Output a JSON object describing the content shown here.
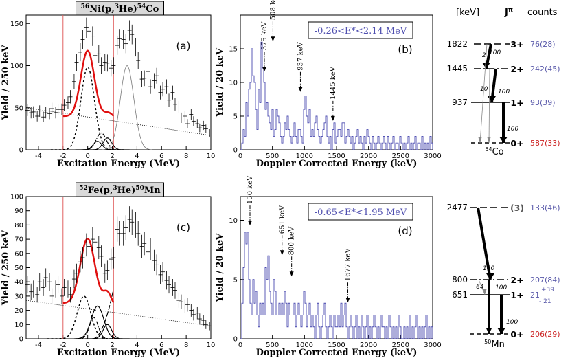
{
  "chart_data": [
    {
      "id": "a",
      "type": "scatter",
      "panel_label": "(a)",
      "header": {
        "pre": "56",
        "mid1": "Ni(p,",
        "sup": "3",
        "mid2": "He)",
        "sup2": "54",
        "post": "Co"
      },
      "xlabel": "Excitation Energy (MeV)",
      "ylabel": "Yield / 250 keV",
      "xlim": [
        -5,
        10
      ],
      "ylim": [
        0,
        160
      ],
      "xticks": [
        "-4",
        "-2",
        "0",
        "2",
        "4",
        "6",
        "8",
        "10"
      ],
      "yticks": [
        "0",
        "50",
        "100",
        "150"
      ],
      "vlines": [
        -2,
        2.1
      ],
      "data_points": [
        [
          -4.9,
          47
        ],
        [
          -4.6,
          44
        ],
        [
          -4.4,
          45
        ],
        [
          -4.1,
          40
        ],
        [
          -3.9,
          46
        ],
        [
          -3.6,
          39
        ],
        [
          -3.4,
          44
        ],
        [
          -3.1,
          43
        ],
        [
          -2.9,
          49
        ],
        [
          -2.6,
          44
        ],
        [
          -2.4,
          48
        ],
        [
          -2.1,
          48
        ],
        [
          -1.9,
          53
        ],
        [
          -1.6,
          56
        ],
        [
          -1.4,
          63
        ],
        [
          -1.1,
          81
        ],
        [
          -0.9,
          104
        ],
        [
          -0.6,
          116
        ],
        [
          -0.4,
          131
        ],
        [
          -0.1,
          145
        ],
        [
          0.1,
          141
        ],
        [
          0.4,
          135
        ],
        [
          0.6,
          112
        ],
        [
          0.9,
          114
        ],
        [
          1.1,
          100
        ],
        [
          1.4,
          104
        ],
        [
          1.6,
          103
        ],
        [
          1.9,
          97
        ],
        [
          2.1,
          100
        ],
        [
          2.4,
          124
        ],
        [
          2.6,
          132
        ],
        [
          2.9,
          131
        ],
        [
          3.1,
          126
        ],
        [
          3.4,
          142
        ],
        [
          3.6,
          137
        ],
        [
          3.9,
          122
        ],
        [
          4.1,
          106
        ],
        [
          4.4,
          84
        ],
        [
          4.6,
          85
        ],
        [
          4.9,
          93
        ],
        [
          5.1,
          75
        ],
        [
          5.4,
          82
        ],
        [
          5.6,
          88
        ],
        [
          5.9,
          68
        ],
        [
          6.1,
          72
        ],
        [
          6.4,
          75
        ],
        [
          6.6,
          59
        ],
        [
          6.9,
          68
        ],
        [
          7.1,
          54
        ],
        [
          7.4,
          51
        ],
        [
          7.6,
          38
        ],
        [
          7.9,
          40
        ],
        [
          8.1,
          31
        ],
        [
          8.4,
          42
        ],
        [
          8.6,
          34
        ],
        [
          8.9,
          31
        ],
        [
          9.1,
          26
        ],
        [
          9.4,
          29
        ],
        [
          9.6,
          25
        ],
        [
          9.9,
          20
        ]
      ],
      "fit_total": {
        "x_range": [
          -2,
          2.1
        ],
        "peaks": [
          [
            0,
            80,
            0.55
          ],
          [
            1.7,
            8,
            0.4
          ]
        ],
        "bg": 40
      },
      "gaussian_main": {
        "center": 0,
        "amp": 98,
        "sigma": 0.55
      },
      "gaussian_small": [
        {
          "center": 0.8,
          "amp": 10,
          "sigma": 0.35
        },
        {
          "center": 1.6,
          "amp": 14,
          "sigma": 0.35
        }
      ],
      "dashdot_peak": {
        "center": 1.1,
        "amp": 20,
        "sigma": 0.4
      },
      "thin_peak": {
        "center": 3.2,
        "amp": 100,
        "sigma": 0.55
      },
      "background": {
        "y_start": 50,
        "y_end": 17
      }
    },
    {
      "id": "b",
      "type": "bar",
      "panel_label": "(b)",
      "legend_box": "-0.26<E*<2.14 MeV",
      "xlabel": "Doppler Corrected Energy (keV)",
      "ylabel": "Yield / 20 keV",
      "xlim": [
        0,
        3000
      ],
      "ylim": [
        0,
        20
      ],
      "xticks": [
        "0",
        "500",
        "1000",
        "1500",
        "2000",
        "2500",
        "3000"
      ],
      "yticks": [
        "0",
        "5",
        "10",
        "15"
      ],
      "annotations": [
        {
          "label": "375 keV",
          "x": 375,
          "y": 11.5
        },
        {
          "label": "508 keV",
          "x": 508,
          "y": 16
        },
        {
          "label": "937 keV",
          "x": 937,
          "y": 8.5
        },
        {
          "label": "1445 keV",
          "x": 1445,
          "y": 4.2
        }
      ],
      "histogram": [
        0,
        1,
        3,
        2,
        7,
        5,
        9,
        10,
        15,
        11,
        10,
        6,
        3,
        9,
        7,
        16,
        12,
        10,
        6,
        7,
        5,
        4,
        3,
        6,
        2,
        3,
        6,
        5,
        4,
        2,
        1,
        2,
        4,
        3,
        5,
        3,
        2,
        1,
        2,
        4,
        2,
        1,
        3,
        3,
        2,
        1,
        6,
        8,
        5,
        4,
        6,
        2,
        3,
        2,
        4,
        5,
        3,
        2,
        1,
        2,
        3,
        4,
        5,
        2,
        1,
        2,
        0,
        3,
        4,
        1,
        2,
        3,
        3,
        2,
        4,
        4,
        1,
        2,
        3,
        2,
        1,
        2,
        0,
        1,
        2,
        3,
        1,
        2,
        1,
        0,
        2,
        1,
        3,
        2,
        1,
        0,
        2,
        1,
        0,
        1,
        2,
        1,
        0,
        1,
        2,
        1,
        0,
        2,
        1,
        0,
        1,
        2,
        0,
        1,
        1,
        0,
        2,
        1,
        0,
        1,
        0,
        1,
        2,
        0,
        1,
        0,
        1,
        2,
        0,
        1,
        1,
        0,
        2,
        0,
        1,
        0,
        1,
        0,
        2,
        1
      ]
    },
    {
      "id": "c",
      "type": "scatter",
      "panel_label": "(c)",
      "header": {
        "pre": "52",
        "mid1": "Fe(p,",
        "sup": "3",
        "mid2": "He)",
        "sup2": "50",
        "post": "Mn"
      },
      "xlabel": "Excitation Energy (MeV)",
      "ylabel": "Yield / 250 keV",
      "xlim": [
        -5,
        10
      ],
      "ylim": [
        0,
        100
      ],
      "xticks": [
        "-4",
        "-2",
        "0",
        "2",
        "4",
        "6",
        "8",
        "10"
      ],
      "yticks": [
        "0",
        "10",
        "20",
        "30",
        "40",
        "50",
        "60",
        "70",
        "80",
        "90",
        "100"
      ],
      "vlines": [
        -2,
        2.1
      ],
      "data_points": [
        [
          -4.9,
          38
        ],
        [
          -4.6,
          33
        ],
        [
          -4.4,
          35
        ],
        [
          -4.1,
          31
        ],
        [
          -3.9,
          40
        ],
        [
          -3.6,
          36
        ],
        [
          -3.4,
          43
        ],
        [
          -3.1,
          40
        ],
        [
          -2.9,
          30
        ],
        [
          -2.6,
          35
        ],
        [
          -2.4,
          38
        ],
        [
          -2.1,
          30
        ],
        [
          -1.9,
          36
        ],
        [
          -1.6,
          35
        ],
        [
          -1.4,
          31
        ],
        [
          -1.1,
          42
        ],
        [
          -0.9,
          46
        ],
        [
          -0.6,
          54
        ],
        [
          -0.4,
          57
        ],
        [
          -0.1,
          66
        ],
        [
          0.1,
          65
        ],
        [
          0.4,
          70
        ],
        [
          0.6,
          68
        ],
        [
          0.9,
          64
        ],
        [
          1.1,
          58
        ],
        [
          1.4,
          46
        ],
        [
          1.6,
          48
        ],
        [
          1.9,
          56
        ],
        [
          2.1,
          57
        ],
        [
          2.4,
          77
        ],
        [
          2.6,
          74
        ],
        [
          2.9,
          74
        ],
        [
          3.1,
          78
        ],
        [
          3.4,
          84
        ],
        [
          3.6,
          82
        ],
        [
          3.9,
          80
        ],
        [
          4.1,
          74
        ],
        [
          4.4,
          65
        ],
        [
          4.6,
          67
        ],
        [
          4.9,
          61
        ],
        [
          5.1,
          63
        ],
        [
          5.4,
          55
        ],
        [
          5.6,
          52
        ],
        [
          5.9,
          45
        ],
        [
          6.1,
          47
        ],
        [
          6.4,
          41
        ],
        [
          6.6,
          38
        ],
        [
          6.9,
          36
        ],
        [
          7.1,
          34
        ],
        [
          7.4,
          27
        ],
        [
          7.6,
          26
        ],
        [
          7.9,
          23
        ],
        [
          8.1,
          24
        ],
        [
          8.4,
          20
        ],
        [
          8.6,
          17
        ],
        [
          8.9,
          18
        ],
        [
          9.1,
          14
        ],
        [
          9.4,
          13
        ],
        [
          9.6,
          10
        ],
        [
          9.9,
          9
        ]
      ],
      "fit_total": {
        "x_range": [
          -2,
          2.1
        ],
        "peaks": [
          [
            0,
            47,
            0.6
          ],
          [
            1.6,
            10,
            0.35
          ]
        ],
        "bg": 25
      },
      "gaussian_main": {
        "center": -0.3,
        "amp": 30,
        "sigma": 0.55
      },
      "gaussian_small": [
        {
          "center": 0.8,
          "amp": 23,
          "sigma": 0.5
        },
        {
          "center": 1.6,
          "amp": 10,
          "sigma": 0.35
        }
      ],
      "dashdot_peak": {
        "center": 0.5,
        "amp": 15,
        "sigma": 0.35
      },
      "dashed_rise": {
        "x_start": 0.4,
        "x_end": 2.1,
        "y_end": 35
      },
      "background": {
        "y_start": 27,
        "y_end": 9
      }
    },
    {
      "id": "d",
      "type": "bar",
      "panel_label": "(d)",
      "legend_box": "-0.65<E*<1.95 MeV",
      "xlabel": "Doppler Corrected Energy (keV)",
      "ylabel": "Yield / 20 keV",
      "xlim": [
        0,
        3000
      ],
      "ylim": [
        0,
        12
      ],
      "xticks": [
        "0",
        "500",
        "1000",
        "1500",
        "2000",
        "2500",
        "3000"
      ],
      "yticks": [
        "0",
        "5",
        "10"
      ],
      "annotations": [
        {
          "label": "150 keV",
          "x": 150,
          "y": 9.5
        },
        {
          "label": "651 keV",
          "x": 651,
          "y": 7
        },
        {
          "label": "800 keV",
          "x": 800,
          "y": 5.2
        },
        {
          "label": "1677 keV",
          "x": 1677,
          "y": 3
        }
      ],
      "histogram": [
        0,
        3,
        6,
        9,
        8,
        9,
        5,
        3,
        2,
        5,
        3,
        4,
        2,
        1,
        3,
        2,
        3,
        2,
        6,
        5,
        7,
        4,
        3,
        2,
        5,
        4,
        2,
        2,
        3,
        2,
        3,
        2,
        4,
        3,
        1,
        3,
        2,
        2,
        2,
        3,
        1,
        2,
        3,
        2,
        1,
        2,
        4,
        3,
        1,
        2,
        3,
        1,
        2,
        1,
        0,
        2,
        3,
        1,
        0,
        1,
        2,
        3,
        1,
        0,
        1,
        2,
        1,
        0,
        2,
        1,
        1,
        2,
        1,
        3,
        1,
        2,
        3,
        1,
        0,
        1,
        2,
        1,
        0,
        1,
        2,
        0,
        1,
        0,
        2,
        1,
        0,
        1,
        2,
        0,
        1,
        0,
        1,
        2,
        1,
        0,
        1,
        0,
        2,
        1,
        1,
        0,
        1,
        0,
        2,
        1,
        0,
        1,
        0,
        1,
        0,
        2,
        1,
        0,
        0,
        1,
        0,
        1,
        0,
        2,
        0,
        1,
        0,
        1,
        2,
        0,
        1,
        0,
        1,
        0,
        1,
        2,
        0,
        1,
        0,
        1
      ]
    }
  ],
  "level_header": {
    "unit": "[keV]",
    "jpi": "J",
    "jpi_sup": "π",
    "counts": "counts"
  },
  "levels_top": {
    "nucleus": "Co",
    "mass": "54",
    "levels": [
      {
        "energy": "1822",
        "jpi": "3+",
        "counts": "76(28)",
        "color": "#5a5aaa"
      },
      {
        "energy": "1445",
        "jpi": "2+",
        "counts": "242(45)",
        "color": "#5a5aaa"
      },
      {
        "energy": "937",
        "jpi": "1+",
        "counts": "93(39)",
        "color": "#5a5aaa"
      },
      {
        "energy": "",
        "jpi": "0+",
        "counts": "587(33)",
        "color": "#cc2222"
      }
    ],
    "branch_labels": [
      "2",
      "100",
      "10",
      "100",
      "100"
    ]
  },
  "levels_bottom": {
    "nucleus": "Mn",
    "mass": "50",
    "levels": [
      {
        "energy": "2477",
        "jpi": "(3)",
        "counts": "133(46)",
        "color": "#5a5aaa"
      },
      {
        "energy": "800",
        "jpi": "2+",
        "counts": "207(84)",
        "color": "#5a5aaa"
      },
      {
        "energy": "651",
        "jpi": "1+",
        "counts": "21",
        "color": "#5a5aaa",
        "err_up": "+39",
        "err_down": "- 21"
      },
      {
        "energy": "",
        "jpi": "0+",
        "counts": "206(29)",
        "color": "#cc2222"
      }
    ],
    "branch_labels": [
      "100",
      "64",
      "100",
      "100"
    ]
  }
}
